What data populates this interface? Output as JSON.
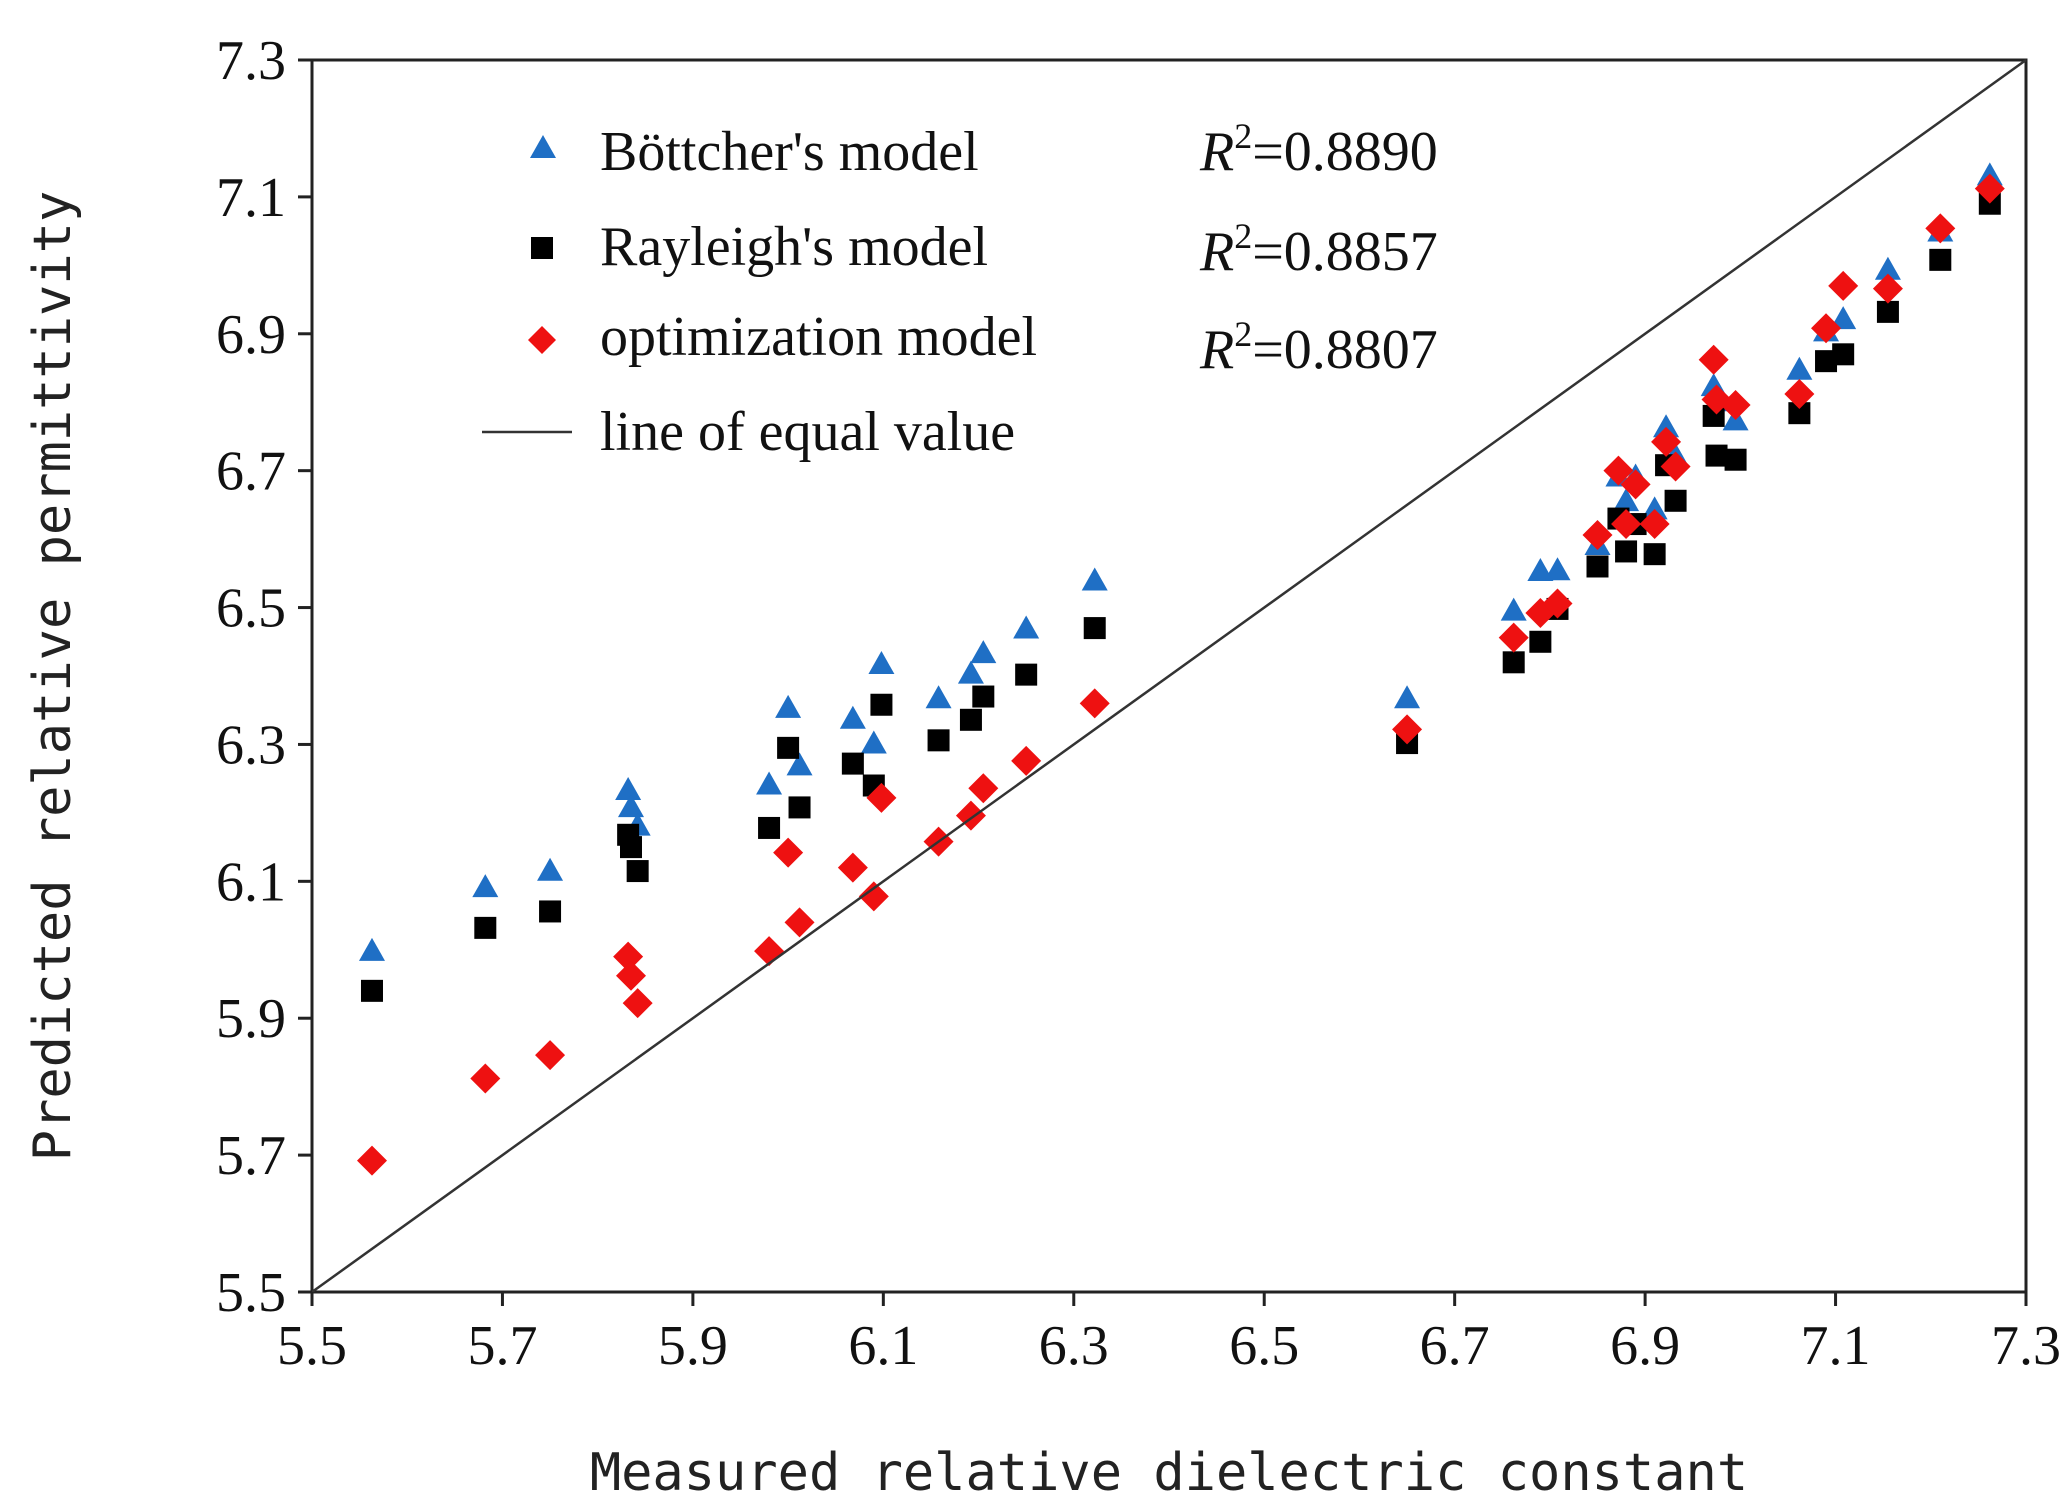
{
  "chart_data": {
    "type": "scatter",
    "xlabel": "Measured relative dielectric constant",
    "ylabel": "Predicted relative permittivity",
    "xlim": [
      5.5,
      7.3
    ],
    "ylim": [
      5.5,
      7.3
    ],
    "xticks": [
      "5.5",
      "5.7",
      "5.9",
      "6.1",
      "6.3",
      "6.5",
      "6.7",
      "6.9",
      "7.1",
      "7.3"
    ],
    "yticks": [
      "5.5",
      "5.7",
      "5.9",
      "6.1",
      "6.3",
      "6.5",
      "6.7",
      "6.9",
      "7.1",
      "7.3"
    ],
    "grid": false,
    "legend_position": "top-left",
    "x": [
      5.563,
      5.682,
      5.75,
      5.832,
      5.835,
      5.842,
      5.98,
      6.0,
      6.012,
      6.068,
      6.09,
      6.098,
      6.158,
      6.192,
      6.205,
      6.25,
      6.322,
      6.65,
      6.762,
      6.79,
      6.808,
      6.85,
      6.872,
      6.88,
      6.89,
      6.91,
      6.922,
      6.932,
      6.972,
      6.975,
      6.995,
      7.062,
      7.09,
      7.108,
      7.155,
      7.21,
      7.262
    ],
    "series": [
      {
        "name": "Böttcher's model",
        "marker": "triangle",
        "color": "#1f6fc5",
        "r2_prefix": "R",
        "r2_exponent": "2",
        "r2_value": "=0.8890",
        "values": [
          5.997,
          6.09,
          6.114,
          6.232,
          6.207,
          6.18,
          6.24,
          6.352,
          6.268,
          6.336,
          6.3,
          6.416,
          6.366,
          6.402,
          6.432,
          6.468,
          6.538,
          6.366,
          6.494,
          6.552,
          6.553,
          6.59,
          6.69,
          6.654,
          6.69,
          6.642,
          6.762,
          6.72,
          6.822,
          6.8,
          6.772,
          6.846,
          6.902,
          6.92,
          6.992,
          7.048,
          7.13
        ]
      },
      {
        "name": "Rayleigh's model",
        "marker": "square",
        "color": "#000000",
        "r2_prefix": "R",
        "r2_exponent": "2",
        "r2_value": "=0.8857",
        "values": [
          5.94,
          6.032,
          6.056,
          6.168,
          6.15,
          6.115,
          6.178,
          6.295,
          6.208,
          6.272,
          6.24,
          6.358,
          6.306,
          6.336,
          6.37,
          6.402,
          6.47,
          6.302,
          6.42,
          6.45,
          6.498,
          6.56,
          6.63,
          6.582,
          6.622,
          6.578,
          6.708,
          6.656,
          6.78,
          6.722,
          6.716,
          6.784,
          6.86,
          6.87,
          6.932,
          7.008,
          7.09
        ]
      },
      {
        "name": "optimization model",
        "marker": "diamond",
        "color": "#ee1111",
        "r2_prefix": "R",
        "r2_exponent": "2",
        "r2_value": "=0.8807",
        "values": [
          5.692,
          5.812,
          5.846,
          5.99,
          5.962,
          5.922,
          5.998,
          6.142,
          6.04,
          6.12,
          6.078,
          6.222,
          6.158,
          6.196,
          6.236,
          6.276,
          6.36,
          6.322,
          6.456,
          6.492,
          6.506,
          6.606,
          6.7,
          6.622,
          6.68,
          6.622,
          6.742,
          6.706,
          6.862,
          6.804,
          6.796,
          6.812,
          6.908,
          6.97,
          6.966,
          7.054,
          7.112
        ]
      }
    ],
    "reference_line": {
      "name": "line of equal value",
      "from": [
        5.5,
        5.5
      ],
      "to": [
        7.3,
        7.3
      ],
      "color": "#333333"
    }
  }
}
